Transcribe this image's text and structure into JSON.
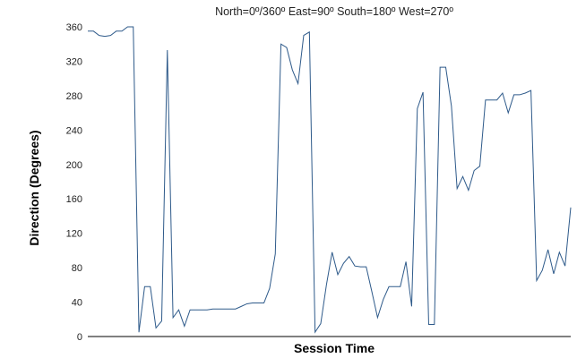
{
  "chart_data": {
    "type": "line",
    "subtitle": "North=0º/360º   East=90º   South=180º   West=270º",
    "xlabel": "Session Time",
    "ylabel": "Direction (Degrees)",
    "ylim": [
      0,
      360
    ],
    "yticks": [
      0,
      40,
      80,
      120,
      160,
      200,
      240,
      280,
      320,
      360
    ],
    "grid": false,
    "line_color": "#2e5a8a",
    "series": [
      {
        "values": [
          355,
          355,
          350,
          349,
          350,
          355,
          355,
          360,
          360,
          5,
          58,
          58,
          10,
          18,
          333,
          22,
          31,
          12,
          31,
          31,
          31,
          31,
          32,
          32,
          32,
          32,
          32,
          35,
          38,
          39,
          39,
          39,
          56,
          96,
          340,
          336,
          310,
          294,
          350,
          354,
          5,
          15,
          60,
          98,
          72,
          85,
          93,
          82,
          81,
          81,
          52,
          22,
          43,
          58,
          58,
          58,
          87,
          35,
          265,
          284,
          14,
          14,
          313,
          313,
          268,
          172,
          186,
          170,
          193,
          198,
          275,
          275,
          275,
          283,
          260,
          281,
          281,
          283,
          286,
          65,
          77,
          101,
          73,
          98,
          82,
          150
        ]
      }
    ]
  }
}
